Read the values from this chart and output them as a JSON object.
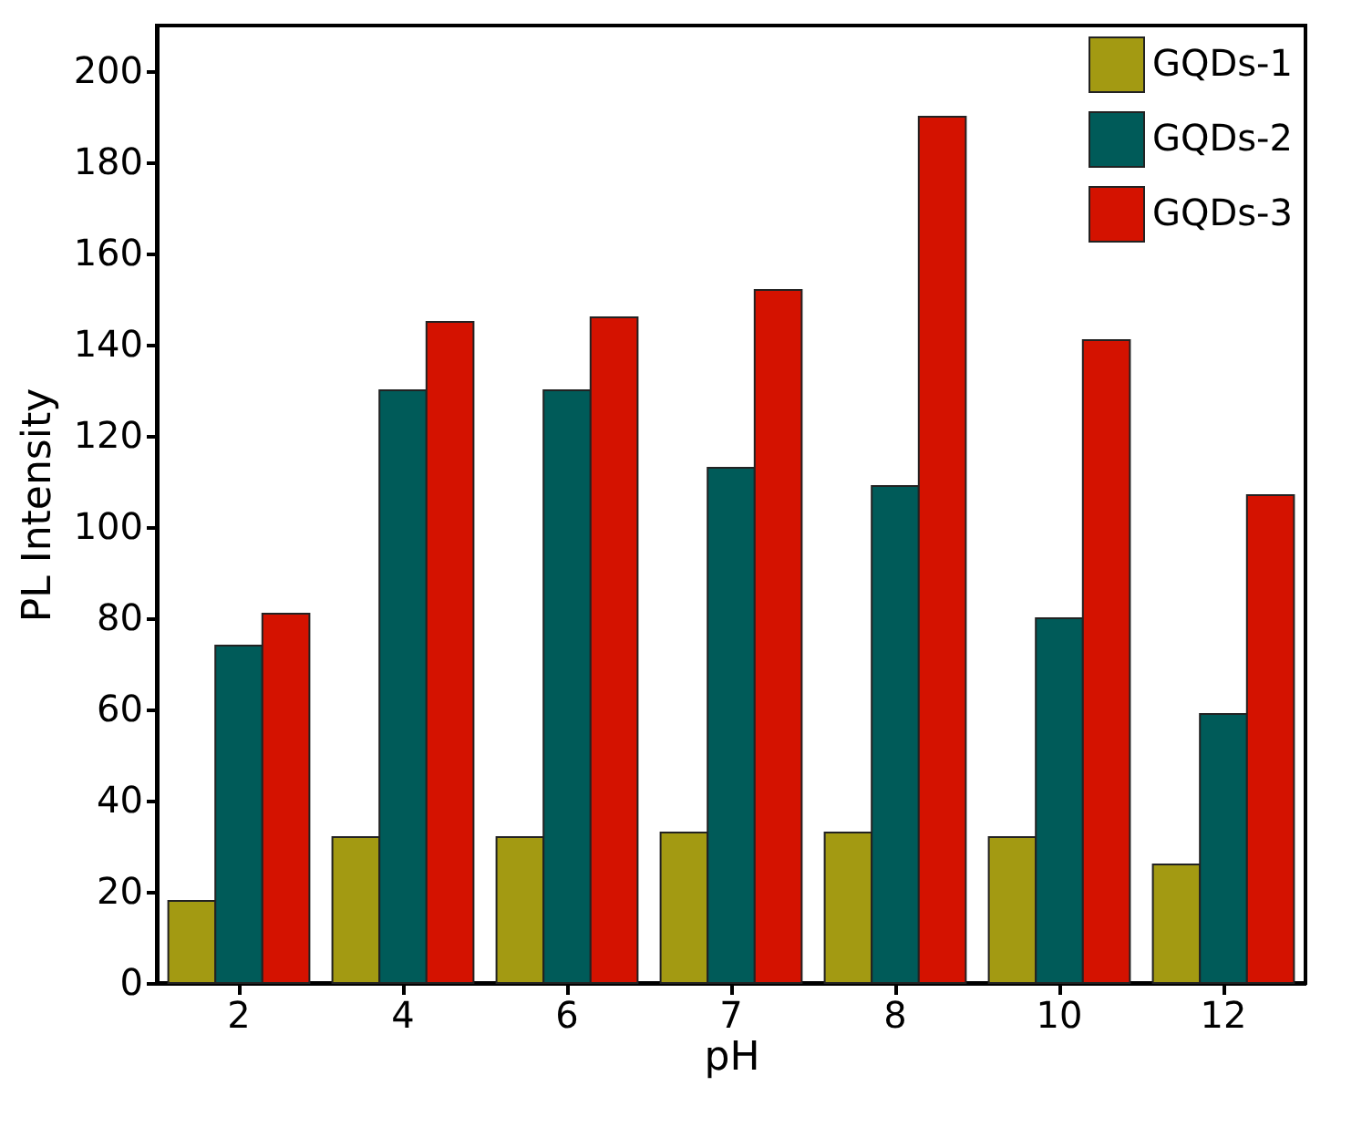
{
  "chart_data": {
    "type": "bar",
    "xlabel": "pH",
    "ylabel": "PL Intensity",
    "categories": [
      "2",
      "4",
      "6",
      "7",
      "8",
      "10",
      "12"
    ],
    "series": [
      {
        "name": "GQDs-1",
        "color": "#a39a12",
        "values": [
          18,
          32,
          32,
          33,
          33,
          32,
          26
        ]
      },
      {
        "name": "GQDs-2",
        "color": "#005b59",
        "values": [
          74,
          130,
          130,
          113,
          109,
          80,
          59
        ]
      },
      {
        "name": "GQDs-3",
        "color": "#d41200",
        "values": [
          81,
          145,
          146,
          152,
          190,
          141,
          107
        ]
      }
    ],
    "ylim": [
      0,
      210
    ],
    "yticks": [
      0,
      20,
      40,
      60,
      80,
      100,
      120,
      140,
      160,
      180,
      200
    ],
    "grid": false,
    "legend": "top right"
  }
}
